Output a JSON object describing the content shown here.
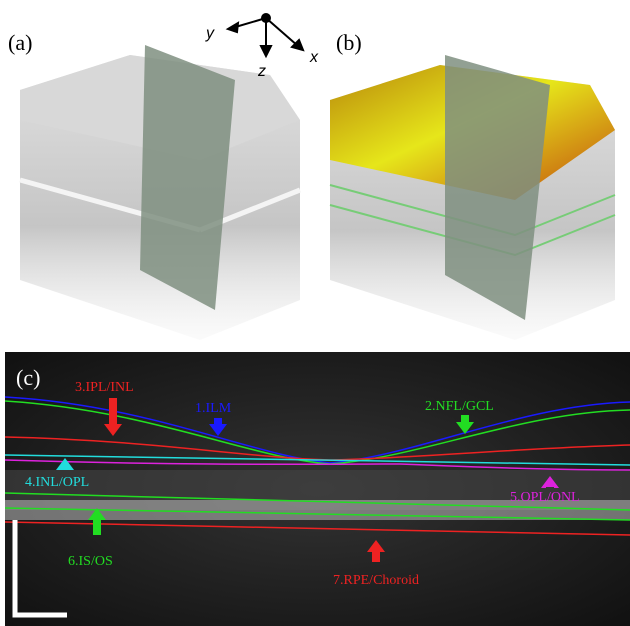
{
  "axes": {
    "y": "y",
    "z": "z",
    "x": "x"
  },
  "panels": [
    {
      "label": "(a)"
    },
    {
      "label": "(b)"
    },
    {
      "label": "(c)",
      "layers": [
        {
          "label": "1.ILM",
          "color": "#1a1aff"
        },
        {
          "label": "2.NFL/GCL",
          "color": "#22dd22"
        },
        {
          "label": "3.IPL/INL",
          "color": "#ee2222"
        },
        {
          "label": "4.INL/OPL",
          "color": "#22dddd"
        },
        {
          "label": "5.OPL/ONL",
          "color": "#dd22dd"
        },
        {
          "label": "6.IS/OS",
          "color": "#22dd22"
        },
        {
          "label": "7.RPE/Choroid",
          "color": "#ee2222"
        }
      ]
    }
  ]
}
